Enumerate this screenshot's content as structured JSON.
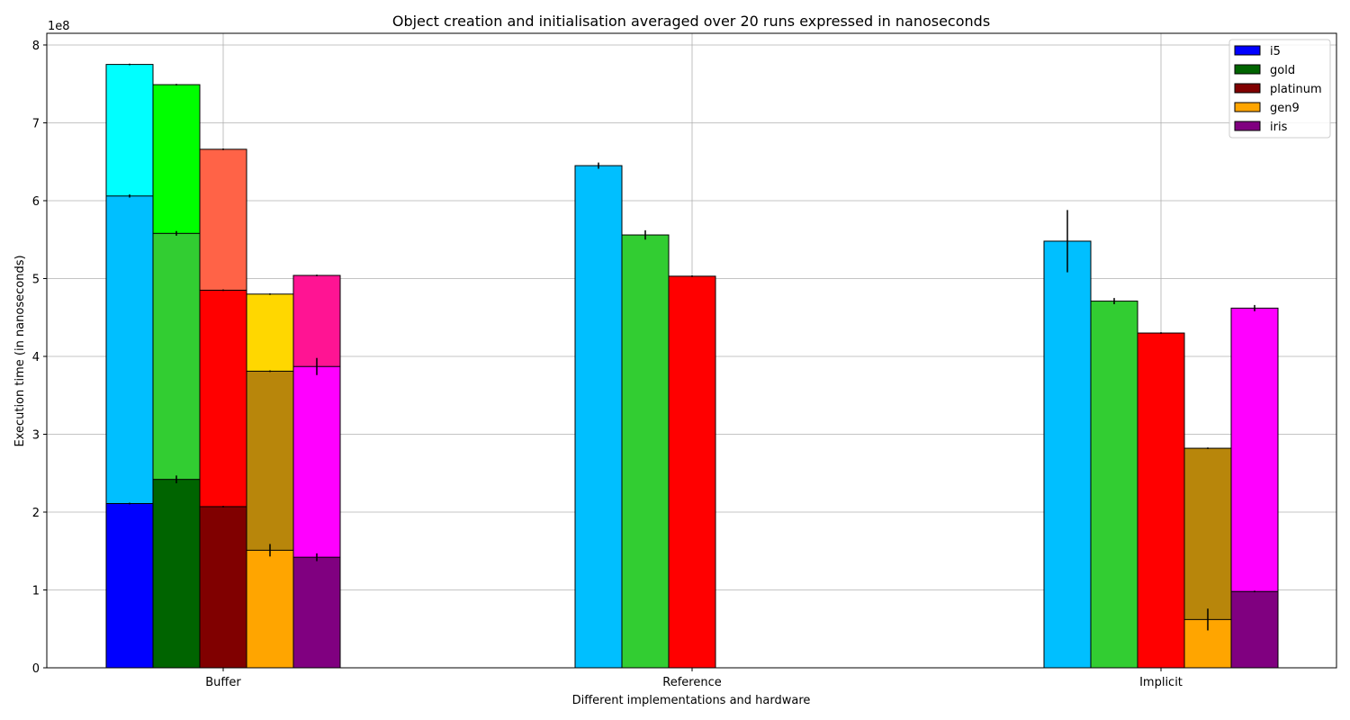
{
  "chart_data": {
    "type": "bar",
    "title": "Object creation and initialisation averaged over 20 runs expressed in nanoseconds",
    "xlabel": "Different implementations and hardware",
    "ylabel": "Execution time (in nanoseconds)",
    "y_offset_label": "1e8",
    "y_scale": 100000000,
    "ylim": [
      0,
      8.15
    ],
    "ytick_values": [
      0,
      1,
      2,
      3,
      4,
      5,
      6,
      7,
      8
    ],
    "ytick_labels": [
      "0",
      "1",
      "2",
      "3",
      "4",
      "5",
      "6",
      "7",
      "8"
    ],
    "categories": [
      "Buffer",
      "Reference",
      "Implicit"
    ],
    "grid": true,
    "legend_position": "top-right",
    "legend": [
      {
        "name": "i5",
        "color": "#0000ff"
      },
      {
        "name": "gold",
        "color": "#006400"
      },
      {
        "name": "platinum",
        "color": "#800000"
      },
      {
        "name": "gen9",
        "color": "#ffa500"
      },
      {
        "name": "iris",
        "color": "#800080"
      }
    ],
    "hardware": [
      "i5",
      "gold",
      "platinum",
      "gen9",
      "iris"
    ],
    "groups": [
      {
        "category": "Buffer",
        "bars": [
          {
            "hardware": "i5",
            "segments": [
              {
                "value": 2.11,
                "err": 0.01,
                "color": "#0000ff"
              },
              {
                "value": 6.06,
                "err": 0.02,
                "color": "#00bfff"
              },
              {
                "value": 7.75,
                "err": 0.01,
                "color": "#00ffff"
              }
            ]
          },
          {
            "hardware": "gold",
            "segments": [
              {
                "value": 2.42,
                "err": 0.05,
                "color": "#006400"
              },
              {
                "value": 5.58,
                "err": 0.03,
                "color": "#32cd32"
              },
              {
                "value": 7.49,
                "err": 0.01,
                "color": "#00ff00"
              }
            ]
          },
          {
            "hardware": "platinum",
            "segments": [
              {
                "value": 2.07,
                "err": 0.01,
                "color": "#800000"
              },
              {
                "value": 4.85,
                "err": 0.01,
                "color": "#ff0000"
              },
              {
                "value": 6.66,
                "err": 0.01,
                "color": "#ff6347"
              }
            ]
          },
          {
            "hardware": "gen9",
            "segments": [
              {
                "value": 1.51,
                "err": 0.08,
                "color": "#ffa500"
              },
              {
                "value": 3.81,
                "err": 0.01,
                "color": "#b8860b"
              },
              {
                "value": 4.8,
                "err": 0.01,
                "color": "#ffd700"
              }
            ]
          },
          {
            "hardware": "iris",
            "segments": [
              {
                "value": 1.42,
                "err": 0.05,
                "color": "#800080"
              },
              {
                "value": 3.87,
                "err": 0.11,
                "color": "#ff00ff"
              },
              {
                "value": 5.04,
                "err": 0.01,
                "color": "#ff1493"
              }
            ]
          }
        ]
      },
      {
        "category": "Reference",
        "bars": [
          {
            "hardware": "i5",
            "segments": [
              {
                "value": 6.45,
                "err": 0.04,
                "color": "#00bfff"
              }
            ]
          },
          {
            "hardware": "gold",
            "segments": [
              {
                "value": 5.56,
                "err": 0.06,
                "color": "#32cd32"
              }
            ]
          },
          {
            "hardware": "platinum",
            "segments": [
              {
                "value": 5.03,
                "err": 0.01,
                "color": "#ff0000"
              }
            ]
          }
        ]
      },
      {
        "category": "Implicit",
        "bars": [
          {
            "hardware": "i5",
            "segments": [
              {
                "value": 5.48,
                "err": 0.4,
                "color": "#00bfff"
              }
            ]
          },
          {
            "hardware": "gold",
            "segments": [
              {
                "value": 4.71,
                "err": 0.04,
                "color": "#32cd32"
              }
            ]
          },
          {
            "hardware": "platinum",
            "segments": [
              {
                "value": 4.3,
                "err": 0.01,
                "color": "#ff0000"
              }
            ]
          },
          {
            "hardware": "gen9",
            "segments": [
              {
                "value": 0.62,
                "err": 0.14,
                "color": "#ffa500"
              },
              {
                "value": 2.82,
                "err": 0.01,
                "color": "#b8860b"
              }
            ]
          },
          {
            "hardware": "iris",
            "segments": [
              {
                "value": 0.98,
                "err": 0.01,
                "color": "#800080"
              },
              {
                "value": 4.62,
                "err": 0.04,
                "color": "#ff00ff"
              }
            ]
          }
        ]
      }
    ]
  }
}
